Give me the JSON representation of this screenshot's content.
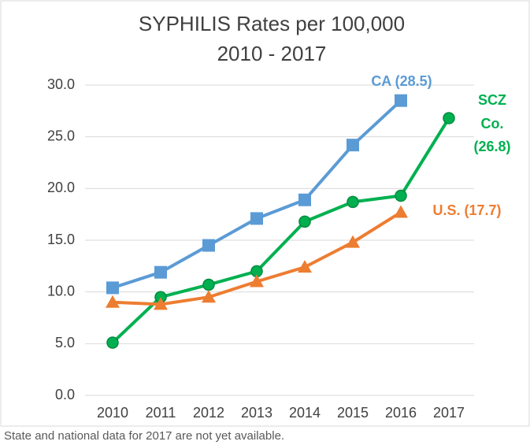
{
  "chart_data": {
    "type": "line",
    "title": [
      "SYPHILIS  Rates per 100,000",
      "2010 - 2017"
    ],
    "categories": [
      "2010",
      "2011",
      "2012",
      "2013",
      "2014",
      "2015",
      "2016",
      "2017"
    ],
    "series": [
      {
        "label": [
          "CA (28.5)"
        ],
        "color": "#5b9bd5",
        "marker": "square",
        "values": [
          10.4,
          11.9,
          14.5,
          17.1,
          18.9,
          24.2,
          28.5,
          null
        ]
      },
      {
        "label": [
          "SCZ",
          "Co.",
          "(26.8)"
        ],
        "color": "#00b050",
        "marker": "circle",
        "values": [
          5.1,
          9.5,
          10.7,
          12.0,
          16.8,
          18.7,
          19.3,
          26.8
        ]
      },
      {
        "label": [
          "U.S. (17.7)"
        ],
        "color": "#ed7d31",
        "marker": "triangle",
        "values": [
          9.0,
          8.8,
          9.5,
          11.0,
          12.4,
          14.8,
          17.7,
          null
        ]
      }
    ],
    "ylim": [
      0,
      30
    ],
    "yticks": [
      {
        "value": 0,
        "label": "0.0"
      },
      {
        "value": 5,
        "label": "5.0"
      },
      {
        "value": 10,
        "label": "10.0"
      },
      {
        "value": 15,
        "label": "15.0"
      },
      {
        "value": 20,
        "label": "20.0"
      },
      {
        "value": 25,
        "label": "25.0"
      },
      {
        "value": 30,
        "label": "30.0"
      }
    ],
    "grid": true,
    "footnote": "State and national data for 2017 are not yet available."
  }
}
